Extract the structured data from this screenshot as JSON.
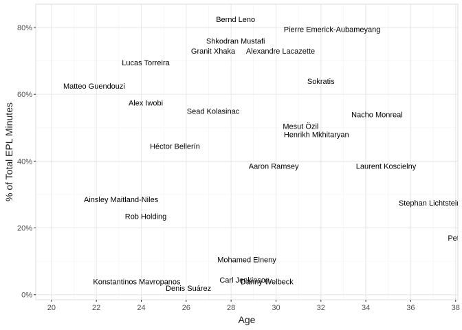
{
  "chart_data": {
    "type": "scatter",
    "title": "",
    "xlabel": "Age",
    "ylabel": "% of Total EPL Minutes",
    "xlim": [
      19.3,
      38.1
    ],
    "ylim": [
      -1.5,
      87
    ],
    "x_ticks": [
      20,
      22,
      24,
      26,
      28,
      30,
      32,
      34,
      36,
      38
    ],
    "x_tick_labels": [
      "20",
      "22",
      "24",
      "26",
      "28",
      "30",
      "32",
      "34",
      "36",
      "38"
    ],
    "y_ticks": [
      0,
      20,
      40,
      60,
      80
    ],
    "y_tick_labels": [
      "0%",
      "20%",
      "40%",
      "60%",
      "80%"
    ],
    "grid": true,
    "marker": "text-label",
    "points": [
      {
        "label": "Bernd Leno",
        "x": 28.2,
        "y": 82.5
      },
      {
        "label": "Pierre Emerick-Aubameyang",
        "x": 32.5,
        "y": 79.5
      },
      {
        "label": "Shkodran Mustafi",
        "x": 28.2,
        "y": 76
      },
      {
        "label": "Granit Xhaka",
        "x": 27.2,
        "y": 73
      },
      {
        "label": "Alexandre Lacazette",
        "x": 30.2,
        "y": 73
      },
      {
        "label": "Lucas Torreira",
        "x": 24.2,
        "y": 69.5
      },
      {
        "label": "Sokratis",
        "x": 32.0,
        "y": 64
      },
      {
        "label": "Matteo Guendouzi",
        "x": 21.9,
        "y": 62.5
      },
      {
        "label": "Alex Iwobi",
        "x": 24.2,
        "y": 57.5
      },
      {
        "label": "Sead Kolasinac",
        "x": 27.2,
        "y": 55
      },
      {
        "label": "Nacho Monreal",
        "x": 34.5,
        "y": 54
      },
      {
        "label": "Mesut Özil",
        "x": 31.1,
        "y": 50.5
      },
      {
        "label": "Henrikh Mkhitaryan",
        "x": 31.8,
        "y": 48
      },
      {
        "label": "Héctor Bellerín",
        "x": 25.5,
        "y": 44.5
      },
      {
        "label": "Aaron Ramsey",
        "x": 29.9,
        "y": 38.5
      },
      {
        "label": "Laurent Koscielny",
        "x": 34.9,
        "y": 38.5
      },
      {
        "label": "Ainsley Maitland-Niles",
        "x": 23.1,
        "y": 28.5
      },
      {
        "label": "Stephan Lichtsteiner",
        "x": 37.0,
        "y": 27.5
      },
      {
        "label": "Rob Holding",
        "x": 24.2,
        "y": 23.5
      },
      {
        "label": "Petr Cech",
        "x": 38.4,
        "y": 17
      },
      {
        "label": "Mohamed Elneny",
        "x": 28.7,
        "y": 10.5
      },
      {
        "label": "Carl Jenkinson",
        "x": 28.6,
        "y": 4.5
      },
      {
        "label": "Danny Welbeck",
        "x": 29.6,
        "y": 4
      },
      {
        "label": "Konstantinos Mavropanos",
        "x": 23.8,
        "y": 4
      },
      {
        "label": "Denis Suárez",
        "x": 26.1,
        "y": 2
      }
    ]
  }
}
